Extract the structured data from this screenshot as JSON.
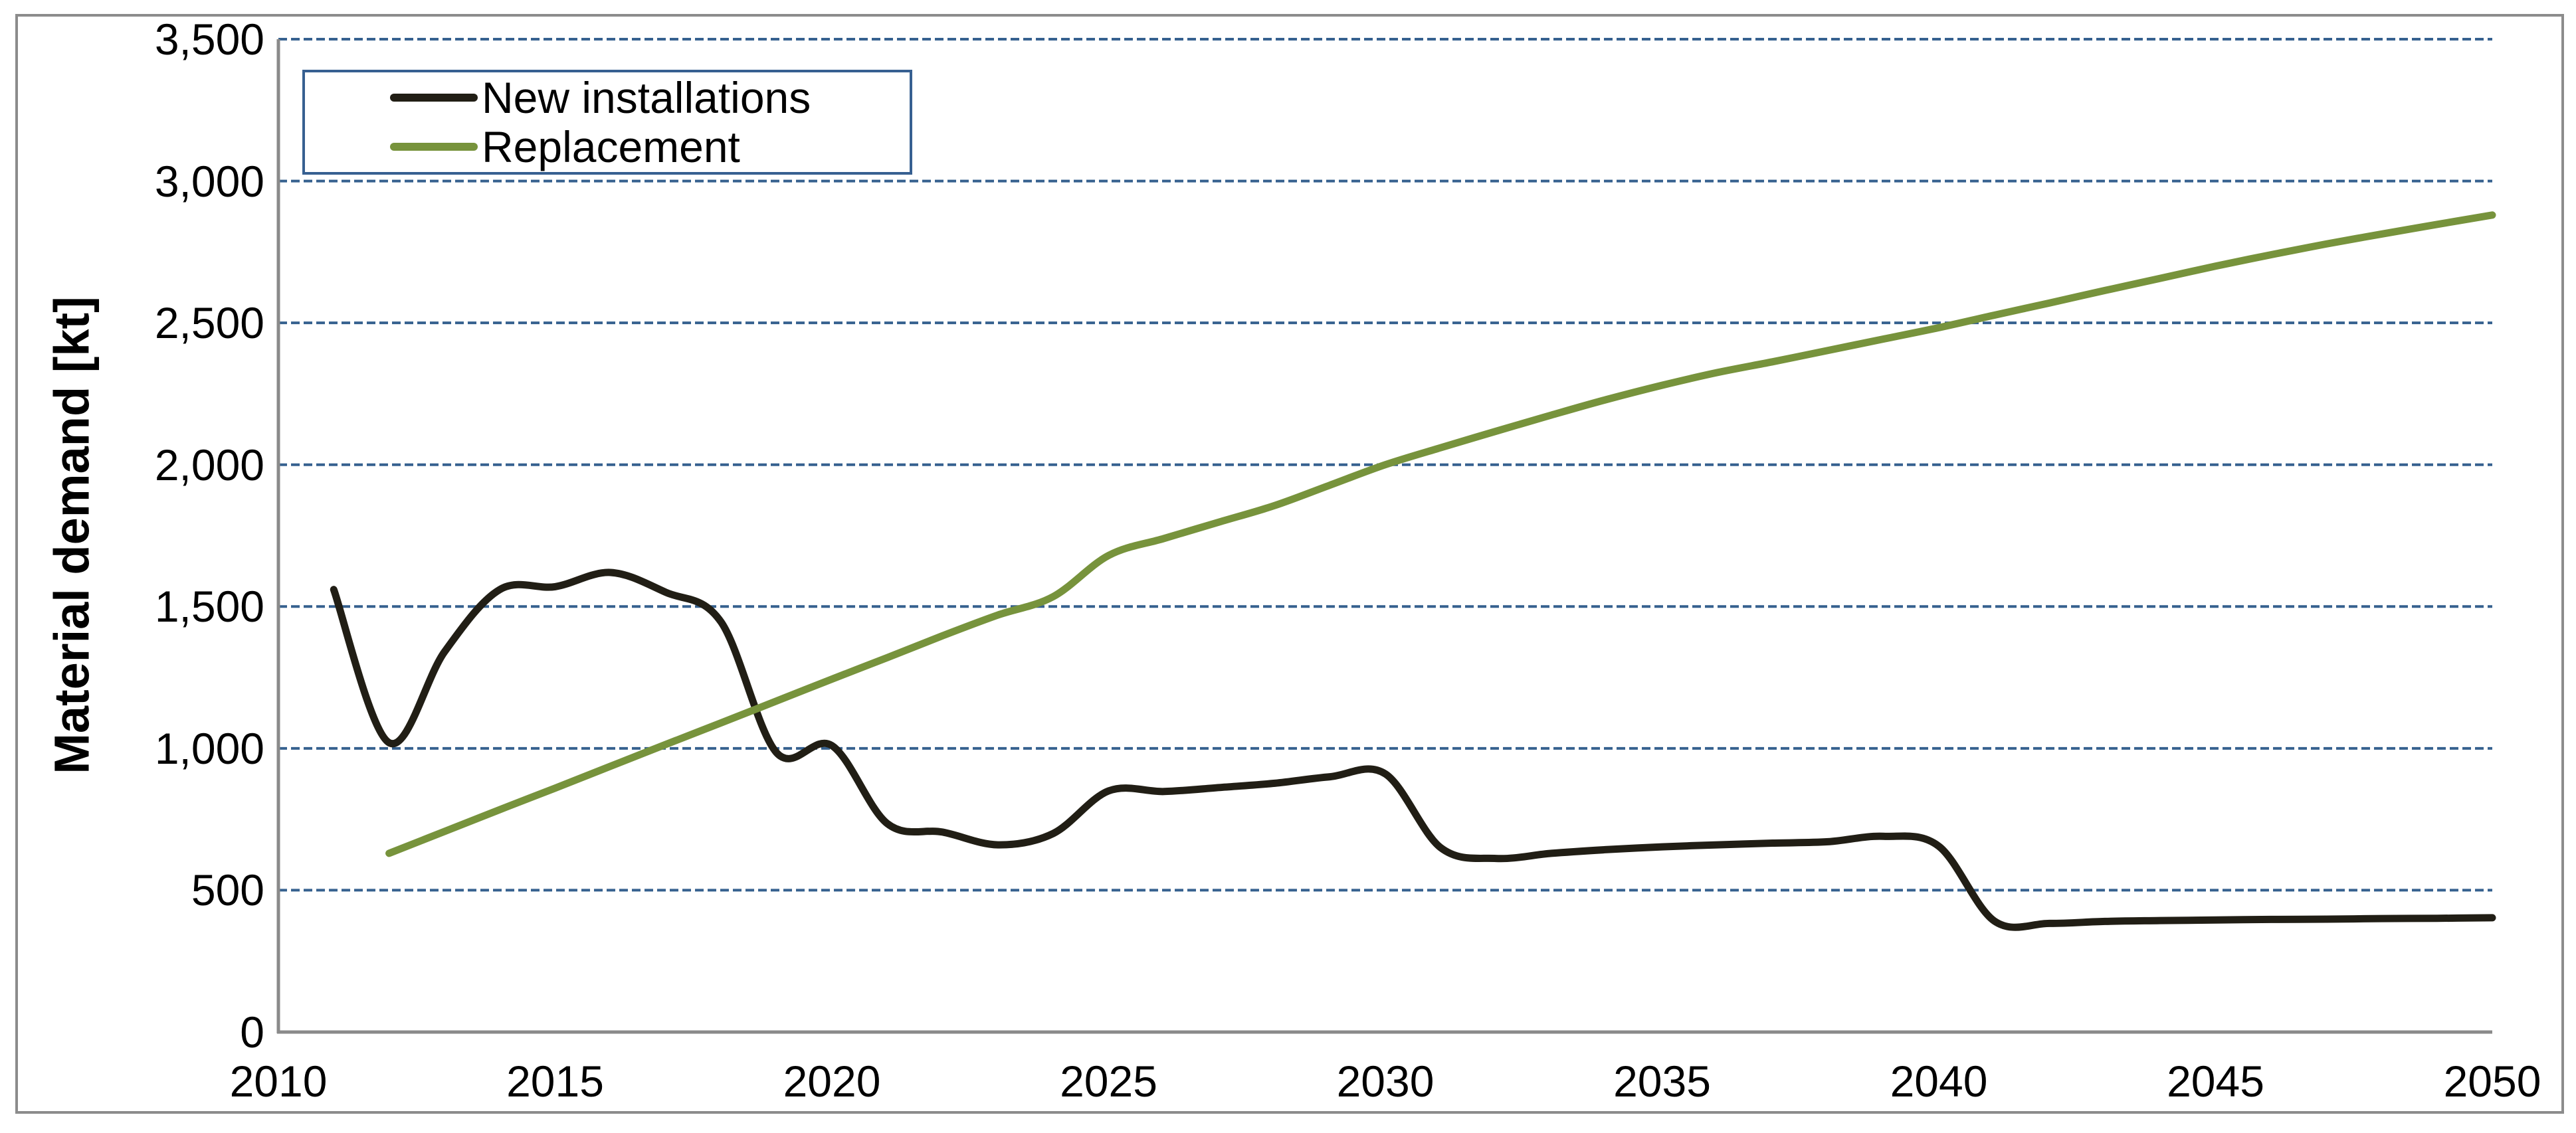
{
  "chart": {
    "y_axis": {
      "title": "Material demand [kt]",
      "tick_labels": [
        "0",
        "500",
        "1,000",
        "1,500",
        "2,000",
        "2,500",
        "3,000",
        "3,500"
      ],
      "tick_values": [
        0,
        500,
        1000,
        1500,
        2000,
        2500,
        3000,
        3500
      ]
    },
    "x_axis": {
      "tick_labels": [
        "2010",
        "2015",
        "2020",
        "2025",
        "2030",
        "2035",
        "2040",
        "2045",
        "2050"
      ],
      "tick_values": [
        2010,
        2015,
        2020,
        2025,
        2030,
        2035,
        2040,
        2045,
        2050
      ]
    },
    "colors": {
      "gridline": "#36618F",
      "axis": "#8A8A8A",
      "frame_border": "#8C8C8C",
      "legend_border": "#376091",
      "background": "#FFFFFF"
    }
  },
  "chart_data": {
    "type": "line",
    "title": "",
    "xlabel": "",
    "ylabel": "Material demand [kt]",
    "xlim": [
      2010,
      2050
    ],
    "ylim": [
      0,
      3500
    ],
    "y_step": 500,
    "grid": "horizontal-dashed",
    "legend_position": "top-left-inside",
    "line_style": "smooth",
    "series": [
      {
        "name": "New installations",
        "color": "#211E15",
        "x": [
          2011,
          2012,
          2013,
          2014,
          2015,
          2016,
          2017,
          2018,
          2019,
          2020,
          2021,
          2022,
          2023,
          2024,
          2025,
          2026,
          2027,
          2028,
          2029,
          2030,
          2031,
          2032,
          2033,
          2034,
          2035,
          2036,
          2037,
          2038,
          2039,
          2040,
          2041,
          2042,
          2043,
          2044,
          2045,
          2046,
          2047,
          2048,
          2049,
          2050
        ],
        "values": [
          1560,
          1020,
          1340,
          1560,
          1570,
          1620,
          1550,
          1445,
          985,
          1010,
          735,
          705,
          660,
          700,
          850,
          848,
          862,
          877,
          900,
          910,
          650,
          612,
          630,
          643,
          653,
          660,
          666,
          671,
          690,
          655,
          392,
          383,
          390,
          393,
          395,
          397,
          398,
          400,
          401,
          403
        ]
      },
      {
        "name": "Replacement",
        "color": "#77933C",
        "x": [
          2012,
          2013,
          2014,
          2015,
          2016,
          2017,
          2018,
          2019,
          2020,
          2021,
          2022,
          2023,
          2024,
          2025,
          2026,
          2027,
          2028,
          2029,
          2030,
          2031,
          2032,
          2033,
          2034,
          2035,
          2036,
          2037,
          2038,
          2039,
          2040,
          2041,
          2042,
          2043,
          2044,
          2045,
          2046,
          2047,
          2048,
          2049,
          2050
        ],
        "values": [
          630,
          707,
          784,
          860,
          937,
          1014,
          1090,
          1167,
          1244,
          1320,
          1397,
          1470,
          1535,
          1680,
          1740,
          1798,
          1856,
          1928,
          2000,
          2060,
          2118,
          2175,
          2230,
          2280,
          2325,
          2363,
          2403,
          2443,
          2483,
          2527,
          2570,
          2614,
          2657,
          2700,
          2740,
          2778,
          2813,
          2847,
          2880
        ]
      }
    ]
  }
}
